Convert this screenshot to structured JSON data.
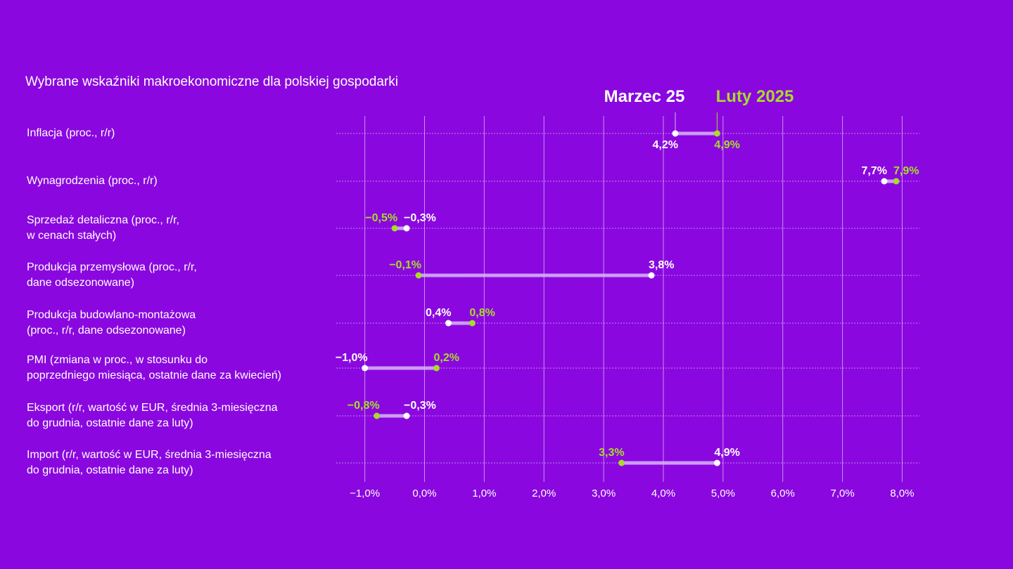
{
  "colors": {
    "background": "#8a08df",
    "current": "#ffffff",
    "previous": "#a8dc2a",
    "bar": "#d7b4f5"
  },
  "chart_data": {
    "type": "dumbbell",
    "title": "Wybrane wskaźniki makroekonomiczne dla polskiej gospodarki",
    "legend": {
      "current": "Marzec 25",
      "previous": "Luty 2025",
      "placement": "top-right"
    },
    "xlim": [
      -1.5,
      8.3
    ],
    "xticks": [
      -1,
      0,
      1,
      2,
      3,
      4,
      5,
      6,
      7,
      8
    ],
    "xtick_labels": [
      "−1,0%",
      "0,0%",
      "1,0%",
      "2,0%",
      "3,0%",
      "4,0%",
      "5,0%",
      "6,0%",
      "7,0%",
      "8,0%"
    ],
    "grid": true,
    "categories": [
      {
        "label": [
          "Inflacja (proc., r/r)"
        ],
        "current": 4.2,
        "previous": 4.9,
        "current_label": "4,2%",
        "previous_label": "4,9%",
        "label_side": "below"
      },
      {
        "label": [
          "Wynagrodzenia (proc., r/r)"
        ],
        "current": 7.7,
        "previous": 7.9,
        "current_label": "7,7%",
        "previous_label": "7,9%",
        "label_side": "above"
      },
      {
        "label": [
          "Sprzedaż detaliczna (proc., r/r,",
          "w cenach stałych)"
        ],
        "current": -0.3,
        "previous": -0.5,
        "current_label": "−0,3%",
        "previous_label": "−0,5%",
        "label_side": "above"
      },
      {
        "label": [
          "Produkcja przemysłowa (proc., r/r,",
          "dane odsezonowane)"
        ],
        "current": 3.8,
        "previous": -0.1,
        "current_label": "3,8%",
        "previous_label": "−0,1%",
        "label_side": "above"
      },
      {
        "label": [
          "Produkcja budowlano-montażowa",
          "(proc., r/r, dane odsezonowane)"
        ],
        "current": 0.4,
        "previous": 0.8,
        "current_label": "0,4%",
        "previous_label": "0,8%",
        "label_side": "above"
      },
      {
        "label": [
          "PMI (zmiana w proc., w stosunku do",
          "poprzedniego miesiąca, ostatnie dane za kwiecień)"
        ],
        "current": -1.0,
        "previous": 0.2,
        "current_label": "−1,0%",
        "previous_label": "0,2%",
        "label_side": "above"
      },
      {
        "label": [
          "Eksport (r/r, wartość w EUR, średnia 3-miesięczna",
          "do grudnia, ostatnie dane za luty)"
        ],
        "current": -0.3,
        "previous": -0.8,
        "current_label": "−0,3%",
        "previous_label": "−0,8%",
        "label_side": "above"
      },
      {
        "label": [
          "Import (r/r, wartość w EUR, średnia 3-miesięczna",
          "do grudnia, ostatnie dane za luty)"
        ],
        "current": 4.9,
        "previous": 3.3,
        "current_label": "4,9%",
        "previous_label": "3,3%",
        "label_side": "above"
      }
    ]
  }
}
